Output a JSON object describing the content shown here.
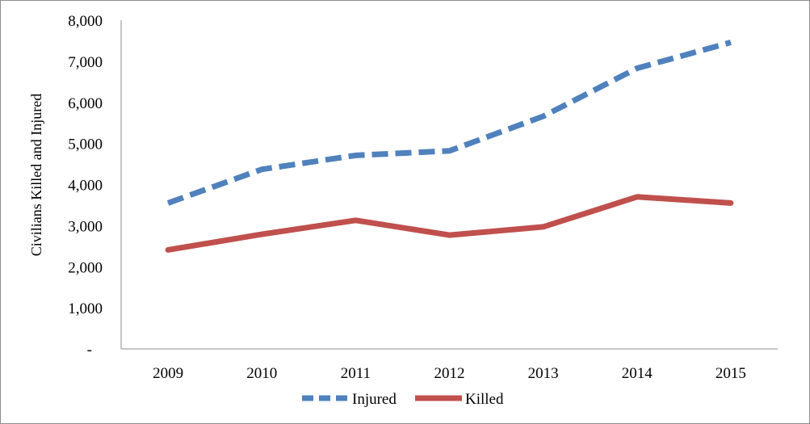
{
  "chart_data": {
    "type": "line",
    "title": "",
    "xlabel": "",
    "ylabel": "Civilians Killed and Injured",
    "categories": [
      "2009",
      "2010",
      "2011",
      "2012",
      "2013",
      "2014",
      "2015"
    ],
    "ylim": [
      0,
      8000
    ],
    "y_ticks": [
      0,
      1000,
      2000,
      3000,
      4000,
      5000,
      6000,
      7000,
      8000
    ],
    "y_tick_labels": [
      "-",
      "1,000",
      "2,000",
      "3,000",
      "4,000",
      "5,000",
      "6,000",
      "7,000",
      "8,000"
    ],
    "grid": false,
    "legend_position": "bottom",
    "series": [
      {
        "name": "Injured",
        "values": [
          3550,
          4370,
          4710,
          4820,
          5660,
          6830,
          7460
        ],
        "color": "#4F81BD",
        "style": "dashed"
      },
      {
        "name": "Killed",
        "values": [
          2410,
          2790,
          3130,
          2770,
          2970,
          3700,
          3550
        ],
        "color": "#C0504D",
        "style": "solid"
      }
    ]
  }
}
